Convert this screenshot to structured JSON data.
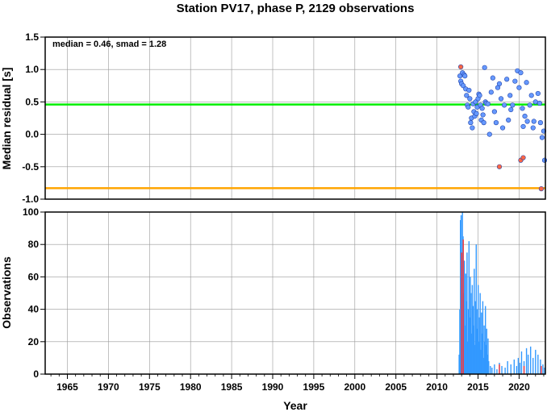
{
  "chart_data": [
    {
      "type": "scatter",
      "title": "Station PV17, phase P, 2129 observations",
      "ylabel": "Median residual [s]",
      "annotation": "median = 0.46, smad = 1.28",
      "xlim": [
        1962.3,
        2023.2
      ],
      "ylim": [
        -1.0,
        1.5
      ],
      "yticks": [
        "1.5",
        "1.0",
        "0.5",
        "0.0",
        "-0.5",
        "-1.0"
      ],
      "grid": true,
      "reference_lines": [
        {
          "y": 0.46,
          "color": "#00ee00"
        },
        {
          "y": -0.83,
          "color": "#ffa500"
        }
      ],
      "colors": {
        "normal": "#6699ff",
        "outlier": "#ff6644"
      },
      "series": [
        {
          "kind": "normal",
          "points": [
            [
              2012.8,
              0.9
            ],
            [
              2012.9,
              0.82
            ],
            [
              2013.0,
              0.78
            ],
            [
              2013.1,
              0.95
            ],
            [
              2013.2,
              0.75
            ],
            [
              2013.3,
              0.92
            ],
            [
              2013.4,
              0.9
            ],
            [
              2013.5,
              0.7
            ],
            [
              2013.6,
              0.6
            ],
            [
              2013.7,
              0.45
            ],
            [
              2013.8,
              0.42
            ],
            [
              2013.9,
              0.68
            ],
            [
              2014.0,
              0.55
            ],
            [
              2014.1,
              0.18
            ],
            [
              2014.2,
              0.25
            ],
            [
              2014.3,
              0.1
            ],
            [
              2014.4,
              0.47
            ],
            [
              2014.5,
              0.35
            ],
            [
              2014.6,
              0.28
            ],
            [
              2014.7,
              0.5
            ],
            [
              2014.8,
              0.32
            ],
            [
              2014.9,
              0.42
            ],
            [
              2015.0,
              0.55
            ],
            [
              2015.1,
              0.62
            ],
            [
              2015.2,
              0.6
            ],
            [
              2015.3,
              0.45
            ],
            [
              2015.4,
              0.22
            ],
            [
              2015.5,
              0.4
            ],
            [
              2015.6,
              0.3
            ],
            [
              2015.7,
              0.18
            ],
            [
              2015.8,
              1.03
            ],
            [
              2015.9,
              0.5
            ],
            [
              2016.0,
              0.48
            ],
            [
              2016.2,
              0.47
            ],
            [
              2016.4,
              0.0
            ],
            [
              2016.6,
              0.65
            ],
            [
              2016.8,
              0.87
            ],
            [
              2017.0,
              0.35
            ],
            [
              2017.2,
              0.18
            ],
            [
              2017.4,
              0.72
            ],
            [
              2017.6,
              0.78
            ],
            [
              2017.8,
              0.55
            ],
            [
              2018.0,
              0.1
            ],
            [
              2018.2,
              0.45
            ],
            [
              2018.5,
              0.85
            ],
            [
              2018.7,
              0.22
            ],
            [
              2018.9,
              0.6
            ],
            [
              2019.0,
              0.38
            ],
            [
              2019.2,
              0.45
            ],
            [
              2019.5,
              0.82
            ],
            [
              2019.8,
              0.98
            ],
            [
              2020.0,
              0.72
            ],
            [
              2020.2,
              0.95
            ],
            [
              2020.4,
              0.4
            ],
            [
              2020.5,
              0.12
            ],
            [
              2020.7,
              0.28
            ],
            [
              2020.9,
              0.8
            ],
            [
              2021.0,
              0.2
            ],
            [
              2021.3,
              0.45
            ],
            [
              2021.5,
              0.6
            ],
            [
              2021.7,
              0.1
            ],
            [
              2021.8,
              0.2
            ],
            [
              2022.0,
              0.5
            ],
            [
              2022.3,
              0.63
            ],
            [
              2022.5,
              0.48
            ],
            [
              2022.6,
              0.18
            ],
            [
              2022.8,
              -0.05
            ],
            [
              2023.0,
              0.05
            ],
            [
              2023.1,
              -0.4
            ]
          ]
        },
        {
          "kind": "outlier",
          "points": [
            [
              2012.9,
              1.04
            ],
            [
              2017.6,
              -0.5
            ],
            [
              2020.2,
              -0.4
            ],
            [
              2020.5,
              -0.36
            ],
            [
              2022.7,
              -0.84
            ]
          ]
        }
      ]
    },
    {
      "type": "bar",
      "xlabel": "Year",
      "ylabel": "Observations",
      "xlim": [
        1962.3,
        2023.2
      ],
      "ylim": [
        0,
        100
      ],
      "yticks": [
        "100",
        "80",
        "60",
        "40",
        "20",
        "0"
      ],
      "xticks": [
        "1965",
        "1970",
        "1975",
        "1980",
        "1985",
        "1990",
        "1995",
        "2000",
        "2005",
        "2010",
        "2015",
        "2020"
      ],
      "grid": true,
      "colors": {
        "normal": "#3399ff",
        "outlier": "#ff3333"
      },
      "series": [
        {
          "kind": "normal",
          "bars": [
            [
              2012.7,
              12
            ],
            [
              2012.78,
              40
            ],
            [
              2012.86,
              95
            ],
            [
              2012.94,
              98
            ],
            [
              2013.02,
              60
            ],
            [
              2013.1,
              100
            ],
            [
              2013.18,
              85
            ],
            [
              2013.26,
              50
            ],
            [
              2013.34,
              70
            ],
            [
              2013.42,
              30
            ],
            [
              2013.5,
              62
            ],
            [
              2013.58,
              45
            ],
            [
              2013.66,
              75
            ],
            [
              2013.74,
              20
            ],
            [
              2013.82,
              40
            ],
            [
              2013.9,
              82
            ],
            [
              2013.98,
              35
            ],
            [
              2014.06,
              60
            ],
            [
              2014.14,
              50
            ],
            [
              2014.22,
              25
            ],
            [
              2014.3,
              55
            ],
            [
              2014.38,
              42
            ],
            [
              2014.46,
              30
            ],
            [
              2014.54,
              65
            ],
            [
              2014.62,
              18
            ],
            [
              2014.7,
              45
            ],
            [
              2014.78,
              80
            ],
            [
              2014.86,
              28
            ],
            [
              2014.94,
              40
            ],
            [
              2015.02,
              55
            ],
            [
              2015.1,
              20
            ],
            [
              2015.18,
              35
            ],
            [
              2015.26,
              50
            ],
            [
              2015.34,
              15
            ],
            [
              2015.42,
              38
            ],
            [
              2015.5,
              25
            ],
            [
              2015.58,
              45
            ],
            [
              2015.66,
              10
            ],
            [
              2015.74,
              30
            ],
            [
              2015.82,
              20
            ],
            [
              2015.9,
              42
            ],
            [
              2015.98,
              18
            ],
            [
              2016.06,
              28
            ],
            [
              2016.14,
              12
            ],
            [
              2016.22,
              22
            ],
            [
              2016.3,
              8
            ],
            [
              2016.5,
              5
            ],
            [
              2016.7,
              4
            ],
            [
              2017.0,
              6
            ],
            [
              2017.3,
              3
            ],
            [
              2017.6,
              7
            ],
            [
              2017.9,
              5
            ],
            [
              2018.3,
              4
            ],
            [
              2018.6,
              8
            ],
            [
              2019.0,
              6
            ],
            [
              2019.4,
              9
            ],
            [
              2019.7,
              5
            ],
            [
              2019.9,
              10
            ],
            [
              2020.1,
              7
            ],
            [
              2020.3,
              14
            ],
            [
              2020.6,
              8
            ],
            [
              2020.9,
              16
            ],
            [
              2021.1,
              12
            ],
            [
              2021.4,
              17
            ],
            [
              2021.7,
              10
            ],
            [
              2022.0,
              15
            ],
            [
              2022.3,
              12
            ],
            [
              2022.6,
              9
            ],
            [
              2022.9,
              6
            ],
            [
              2023.1,
              4
            ]
          ]
        },
        {
          "kind": "outlier",
          "bars": [
            [
              2013.0,
              75
            ],
            [
              2013.2,
              83
            ],
            [
              2017.6,
              6
            ],
            [
              2020.6,
              5
            ],
            [
              2022.7,
              5
            ]
          ]
        }
      ]
    }
  ]
}
